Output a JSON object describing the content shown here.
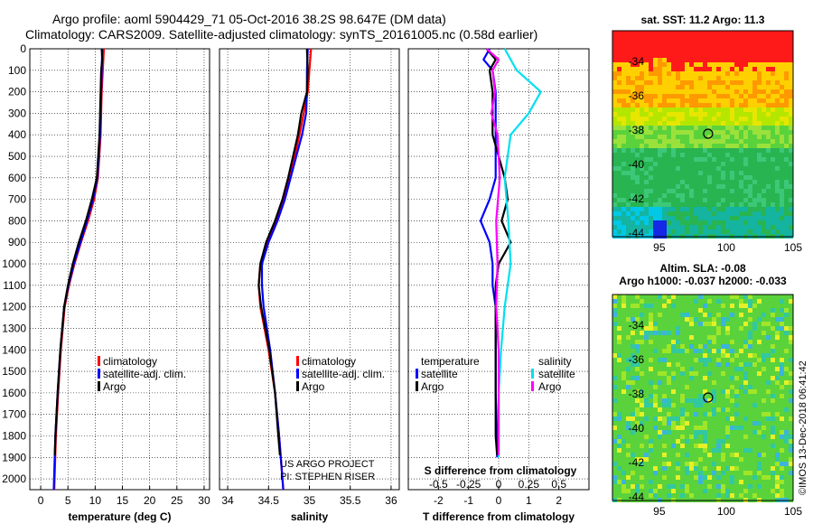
{
  "header": {
    "line1": "Argo profile: aoml 5904429_71 05-Oct-2016 38.2S 98.647E (DM data)",
    "line2": "Climatology: CARS2009. Satellite-adjusted climatology: synTS_20161005.nc (0.58d earlier)"
  },
  "credit": {
    "line1": "US ARGO PROJECT",
    "line2": "PI: STEPHEN RISER"
  },
  "stamp": "©IMOS 13-Dec-2018 06:41:42",
  "colors": {
    "red": "#ff0000",
    "blue": "#0000ff",
    "black": "#000000",
    "cyan": "#00e0f0",
    "magenta": "#ff00ff"
  },
  "chart_data": [
    {
      "type": "line",
      "id": "temperature",
      "xlabel": "temperature (deg C)",
      "xlim": [
        -2,
        31
      ],
      "xticks": [
        "0",
        "5",
        "10",
        "15",
        "20",
        "25",
        "30"
      ],
      "xtick_values": [
        0,
        5,
        10,
        15,
        20,
        25,
        30
      ],
      "ylim": [
        0,
        2050
      ],
      "yticks": [
        "0",
        "100",
        "200",
        "300",
        "400",
        "500",
        "600",
        "700",
        "800",
        "900",
        "1000",
        "1100",
        "1200",
        "1300",
        "1400",
        "1500",
        "1600",
        "1700",
        "1800",
        "1900",
        "2000"
      ],
      "ytick_values": [
        0,
        100,
        200,
        300,
        400,
        500,
        600,
        700,
        800,
        900,
        1000,
        1100,
        1200,
        1300,
        1400,
        1500,
        1600,
        1700,
        1800,
        1900,
        2000
      ],
      "legend": [
        "climatology",
        "satellite-adj. clim.",
        "Argo"
      ],
      "series": [
        {
          "name": "climatology",
          "color": "#ff0000",
          "depth": [
            0,
            100,
            200,
            400,
            600,
            700,
            800,
            900,
            1000,
            1100,
            1200,
            1400,
            1600,
            1800,
            2050
          ],
          "values": [
            11.6,
            11.4,
            11.2,
            11.0,
            10.5,
            9.8,
            8.7,
            7.4,
            6.2,
            5.2,
            4.4,
            3.7,
            3.2,
            2.8,
            2.5
          ]
        },
        {
          "name": "satellite-adj. clim.",
          "color": "#0000ff",
          "depth": [
            0,
            100,
            200,
            400,
            600,
            700,
            800,
            900,
            1000,
            1100,
            1200,
            1400,
            1600,
            1800,
            2050
          ],
          "values": [
            11.3,
            11.2,
            11.1,
            10.9,
            10.4,
            9.6,
            8.5,
            7.3,
            6.1,
            5.1,
            4.3,
            3.6,
            3.1,
            2.7,
            2.4
          ]
        },
        {
          "name": "Argo",
          "color": "#000000",
          "depth": [
            0,
            50,
            100,
            200,
            400,
            600,
            700,
            800,
            900,
            1000,
            1100,
            1200,
            1400,
            1600,
            1800,
            1890
          ],
          "values": [
            11.2,
            11.3,
            11.1,
            11.0,
            10.8,
            10.3,
            9.4,
            8.3,
            7.0,
            5.9,
            5.0,
            4.3,
            3.6,
            3.1,
            2.7,
            2.6
          ]
        }
      ]
    },
    {
      "type": "line",
      "id": "salinity",
      "xlabel": "salinity",
      "xlim": [
        33.9,
        36.1
      ],
      "xticks": [
        "34",
        "34.5",
        "35",
        "35.5",
        "36"
      ],
      "xtick_values": [
        34,
        34.5,
        35,
        35.5,
        36
      ],
      "ylim": [
        0,
        2050
      ],
      "legend": [
        "climatology",
        "satellite-adj. clim.",
        "Argo"
      ],
      "series": [
        {
          "name": "climatology",
          "color": "#ff0000",
          "depth": [
            0,
            100,
            200,
            300,
            400,
            500,
            600,
            700,
            800,
            900,
            1000,
            1100,
            1200,
            1300,
            1400,
            1600,
            1800,
            2050
          ],
          "values": [
            35.02,
            35.0,
            34.98,
            34.93,
            34.88,
            34.82,
            34.76,
            34.69,
            34.6,
            34.48,
            34.4,
            34.38,
            34.4,
            34.45,
            34.5,
            34.58,
            34.63,
            34.68
          ]
        },
        {
          "name": "satellite-adj. clim.",
          "color": "#0000ff",
          "depth": [
            0,
            100,
            200,
            300,
            400,
            500,
            600,
            700,
            800,
            900,
            1000,
            1100,
            1200,
            1300,
            1400,
            1600,
            1800,
            2050
          ],
          "values": [
            34.98,
            34.97,
            34.97,
            34.96,
            34.91,
            34.84,
            34.77,
            34.7,
            34.61,
            34.5,
            34.42,
            34.42,
            34.44,
            34.48,
            34.52,
            34.58,
            34.63,
            34.68
          ]
        },
        {
          "name": "Argo",
          "color": "#000000",
          "depth": [
            0,
            100,
            200,
            300,
            400,
            500,
            600,
            700,
            800,
            900,
            1000,
            1100,
            1200,
            1300,
            1400,
            1600,
            1800,
            1890
          ],
          "values": [
            34.97,
            34.98,
            34.97,
            34.9,
            34.86,
            34.8,
            34.74,
            34.67,
            34.58,
            34.47,
            34.4,
            34.38,
            34.41,
            34.46,
            34.51,
            34.58,
            34.62,
            34.64
          ]
        }
      ]
    },
    {
      "type": "line",
      "id": "difference",
      "xlabel": "T difference from climatology",
      "xlabel_top": "S difference from climatology",
      "xlim": [
        -3,
        3
      ],
      "xticks": [
        "-2",
        "-1",
        "0",
        "1",
        "2"
      ],
      "xtick_values": [
        -2,
        -1,
        0,
        1,
        2
      ],
      "sticks": [
        "-0.5",
        "-0.25",
        "0",
        "0.25",
        "0.5"
      ],
      "stick_values": [
        -0.5,
        -0.25,
        0,
        0.25,
        0.5
      ],
      "ylim": [
        0,
        2050
      ],
      "legend_title_t": "temperature",
      "legend_title_s": "salinity",
      "legend_t": [
        "satellite",
        "Argo"
      ],
      "legend_s": [
        "satellite",
        "Argo"
      ],
      "series": [
        {
          "name": "T satellite",
          "color": "#0000ff",
          "depth": [
            0,
            50,
            100,
            200,
            400,
            600,
            700,
            800,
            900,
            1000,
            1100,
            1200,
            1400,
            1600,
            1800,
            1900
          ],
          "values": [
            -0.3,
            -0.5,
            -0.2,
            -0.1,
            -0.1,
            -0.1,
            -0.3,
            -0.6,
            -0.3,
            -0.2,
            -0.2,
            -0.1,
            -0.1,
            -0.1,
            -0.05,
            -0.05
          ]
        },
        {
          "name": "T Argo",
          "color": "#000000",
          "depth": [
            0,
            50,
            100,
            200,
            400,
            600,
            700,
            800,
            900,
            950,
            1000,
            1100,
            1200,
            1400,
            1600,
            1800,
            1890
          ],
          "values": [
            -0.4,
            -0.1,
            -0.3,
            -0.2,
            -0.2,
            0.2,
            0.3,
            0.1,
            0.4,
            0.2,
            0.0,
            -0.1,
            -0.1,
            -0.1,
            -0.1,
            -0.1,
            -0.05
          ]
        },
        {
          "name": "S satellite",
          "color": "#00e0f0",
          "depth": [
            0,
            50,
            100,
            200,
            300,
            400,
            600,
            800,
            1000,
            1200,
            1400,
            1600,
            1800,
            1900
          ],
          "values": [
            0.05,
            0.1,
            0.15,
            0.35,
            0.25,
            0.1,
            0.05,
            0.08,
            0.1,
            0.05,
            0.02,
            0.0,
            0.0,
            0.0
          ]
        },
        {
          "name": "S Argo",
          "color": "#ff00ff",
          "depth": [
            0,
            50,
            100,
            200,
            300,
            400,
            600,
            800,
            1000,
            1200,
            1400,
            1600,
            1800,
            1890
          ],
          "values": [
            -0.1,
            0.0,
            -0.05,
            -0.03,
            -0.06,
            -0.01,
            0.01,
            -0.02,
            -0.01,
            -0.02,
            0.0,
            0.0,
            0.0,
            0.0
          ]
        }
      ]
    },
    {
      "type": "heatmap",
      "id": "sst-map",
      "title": "sat. SST: 11.2 Argo: 11.3",
      "xticks": [
        "95",
        "100",
        "105"
      ],
      "xtick_values": [
        95,
        100,
        105
      ],
      "yticks": [
        "-34",
        "-36",
        "-38",
        "-40",
        "-42",
        "-44"
      ],
      "ytick_values": [
        -34,
        -36,
        -38,
        -40,
        -42,
        -44
      ],
      "xlim": [
        91.5,
        105
      ],
      "ylim": [
        -44.2,
        -32.2
      ],
      "float_position": [
        98.647,
        -38.2
      ]
    },
    {
      "type": "heatmap",
      "id": "sla-map",
      "title": "Altim. SLA: -0.08",
      "subtitle": "Argo h1000: -0.037 h2000: -0.033",
      "xticks": [
        "95",
        "100",
        "105"
      ],
      "xtick_values": [
        95,
        100,
        105
      ],
      "yticks": [
        "-34",
        "-36",
        "-38",
        "-40",
        "-42",
        "-44"
      ],
      "ytick_values": [
        -34,
        -36,
        -38,
        -40,
        -42,
        -44
      ],
      "xlim": [
        91.5,
        105
      ],
      "ylim": [
        -44.2,
        -32.2
      ],
      "float_position": [
        98.647,
        -38.2
      ]
    }
  ]
}
